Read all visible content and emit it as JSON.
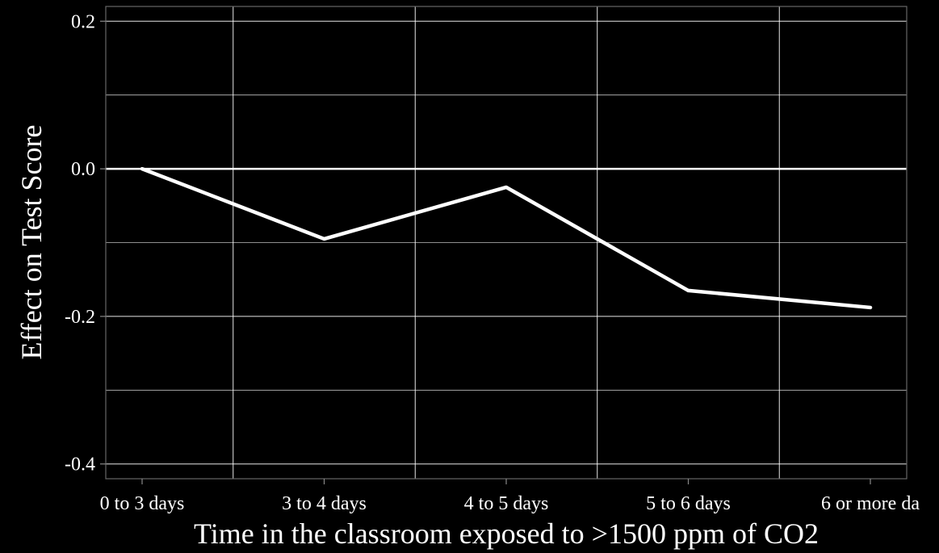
{
  "chart_data": {
    "type": "line",
    "categories": [
      "0 to 3 days",
      "3 to 4 days",
      "4 to 5 days",
      "5 to 6 days",
      "6 or more da"
    ],
    "series": [
      {
        "values": [
          0.0,
          -0.095,
          -0.025,
          -0.165,
          -0.188
        ]
      }
    ],
    "reference_line": {
      "y": 0.0
    },
    "xlabel": "Time in the classroom exposed to >1500 ppm of CO2",
    "ylabel": "Effect on Test Score",
    "ylim": [
      -0.42,
      0.22
    ],
    "yticks": [
      0.2,
      0.0,
      -0.2,
      -0.4
    ],
    "ytick_labels": [
      "0.2",
      "0.0",
      "-0.2",
      "-0.4"
    ],
    "yminor": [
      0.1,
      -0.1,
      -0.3
    ],
    "grid": true,
    "colors": {
      "background": "#000000",
      "line": "#ffffff",
      "grid": "#ffffff",
      "text": "#ffffff"
    }
  }
}
